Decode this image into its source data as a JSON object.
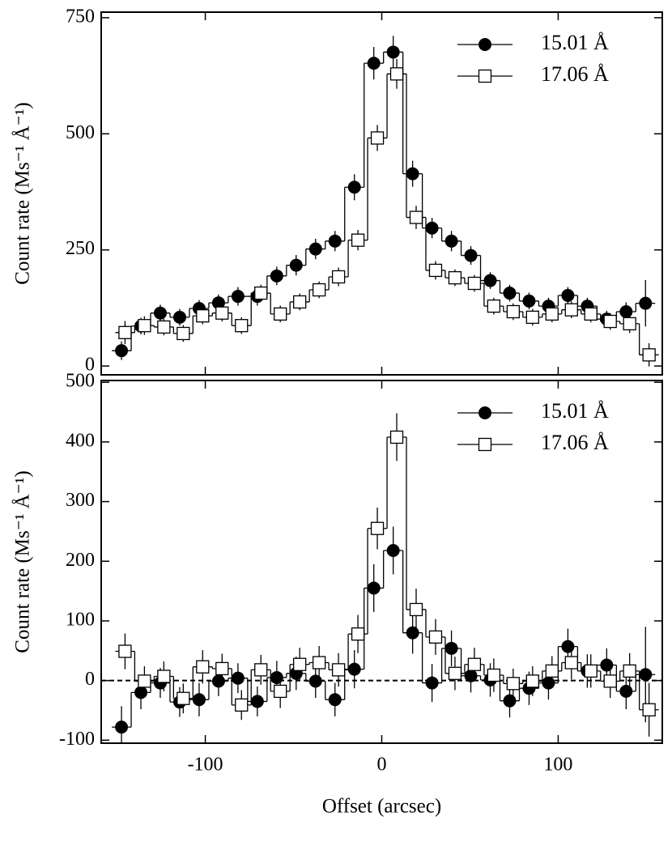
{
  "chart_data": [
    {
      "type": "line",
      "drawstyle": "steps-mid",
      "ylabel": "Count rate (Ms⁻¹ Å⁻¹)",
      "xlim": [
        -159,
        159
      ],
      "ylim": [
        -19,
        762
      ],
      "xticks": [
        -100,
        0,
        100
      ],
      "xtick_labels": false,
      "yticks": [
        0,
        250,
        500,
        750
      ],
      "legend": "upper right",
      "series": [
        {
          "name": "15.01 Å",
          "color": "#000000",
          "marker": "circle",
          "x": [
            -147.5,
            -136.5,
            -125.5,
            -114.5,
            -103.5,
            -92.5,
            -81.5,
            -70.5,
            -59.5,
            -48.5,
            -37.5,
            -26.5,
            -15.5,
            -4.5,
            6.5,
            17.5,
            28.5,
            39.5,
            50.5,
            61.5,
            72.5,
            83.5,
            94.5,
            105.5,
            116.5,
            127.5,
            138.5,
            149.5
          ],
          "values": [
            33,
            86,
            114,
            105,
            124,
            136,
            150,
            150,
            194,
            217,
            252,
            269,
            385,
            652,
            676,
            414,
            297,
            269,
            238,
            184,
            157,
            140,
            129,
            152,
            129,
            101,
            117,
            135
          ],
          "errors": [
            20,
            18,
            18,
            18,
            18,
            18,
            20,
            20,
            20,
            22,
            22,
            22,
            28,
            35,
            35,
            28,
            22,
            22,
            20,
            18,
            18,
            18,
            18,
            18,
            18,
            18,
            20,
            50
          ]
        },
        {
          "name": "17.06 Å",
          "color": "#000000",
          "marker": "square",
          "x": [
            -145.5,
            -134.5,
            -123.5,
            -112.5,
            -101.5,
            -90.5,
            -79.5,
            -68.5,
            -57.5,
            -46.5,
            -35.5,
            -24.5,
            -13.5,
            -2.5,
            8.5,
            19.5,
            30.5,
            41.5,
            52.5,
            63.5,
            74.5,
            85.5,
            96.5,
            107.5,
            118.5,
            129.5,
            140.5,
            151.5
          ],
          "values": [
            72,
            87,
            84,
            70,
            108,
            114,
            87,
            157,
            112,
            138,
            164,
            192,
            271,
            491,
            629,
            320,
            206,
            190,
            178,
            129,
            117,
            105,
            112,
            121,
            112,
            96,
            91,
            24
          ],
          "errors": [
            25,
            20,
            18,
            18,
            18,
            18,
            18,
            18,
            18,
            18,
            18,
            20,
            22,
            28,
            32,
            25,
            20,
            18,
            18,
            18,
            18,
            18,
            18,
            18,
            18,
            18,
            20,
            25
          ]
        }
      ]
    },
    {
      "type": "line",
      "drawstyle": "steps-mid",
      "ylabel": "Count rate (Ms⁻¹ Å⁻¹)",
      "xlabel": "Offset (arcsec)",
      "xlim": [
        -159,
        159
      ],
      "ylim": [
        -105,
        503
      ],
      "xticks": [
        -100,
        0,
        100
      ],
      "xtick_labels": true,
      "yticks": [
        -100,
        0,
        100,
        200,
        300,
        400,
        500
      ],
      "hline": 0,
      "legend": "upper right",
      "series": [
        {
          "name": "15.01 Å",
          "color": "#000000",
          "marker": "circle",
          "x": [
            -147.5,
            -136.5,
            -125.5,
            -114.5,
            -103.5,
            -92.5,
            -81.5,
            -70.5,
            -59.5,
            -48.5,
            -37.5,
            -26.5,
            -15.5,
            -4.5,
            6.5,
            17.5,
            28.5,
            39.5,
            50.5,
            61.5,
            72.5,
            83.5,
            94.5,
            105.5,
            116.5,
            127.5,
            138.5,
            149.5
          ],
          "values": [
            -78,
            -20,
            -4,
            -36,
            -32,
            -1,
            4,
            -35,
            5,
            12,
            -1,
            -32,
            19,
            155,
            218,
            80,
            -4,
            54,
            8,
            1,
            -34,
            -13,
            -4,
            57,
            16,
            26,
            -18,
            10
          ],
          "errors": [
            35,
            28,
            25,
            25,
            28,
            25,
            25,
            25,
            28,
            28,
            28,
            28,
            32,
            40,
            40,
            35,
            32,
            30,
            28,
            28,
            28,
            28,
            28,
            30,
            28,
            28,
            30,
            80
          ]
        },
        {
          "name": "17.06 Å",
          "color": "#000000",
          "marker": "square",
          "x": [
            -145.5,
            -134.5,
            -123.5,
            -112.5,
            -101.5,
            -90.5,
            -79.5,
            -68.5,
            -57.5,
            -46.5,
            -35.5,
            -24.5,
            -13.5,
            -2.5,
            8.5,
            19.5,
            30.5,
            41.5,
            52.5,
            63.5,
            74.5,
            85.5,
            96.5,
            107.5,
            118.5,
            129.5,
            140.5,
            151.5
          ],
          "values": [
            49,
            -1,
            7,
            -30,
            23,
            20,
            -41,
            18,
            -18,
            27,
            30,
            18,
            78,
            255,
            408,
            119,
            73,
            12,
            27,
            9,
            -5,
            -1,
            16,
            30,
            16,
            -1,
            16,
            -49
          ],
          "errors": [
            30,
            25,
            25,
            25,
            28,
            25,
            25,
            25,
            28,
            28,
            28,
            28,
            32,
            35,
            40,
            35,
            30,
            28,
            28,
            28,
            25,
            25,
            25,
            28,
            28,
            28,
            30,
            45
          ]
        }
      ]
    }
  ]
}
